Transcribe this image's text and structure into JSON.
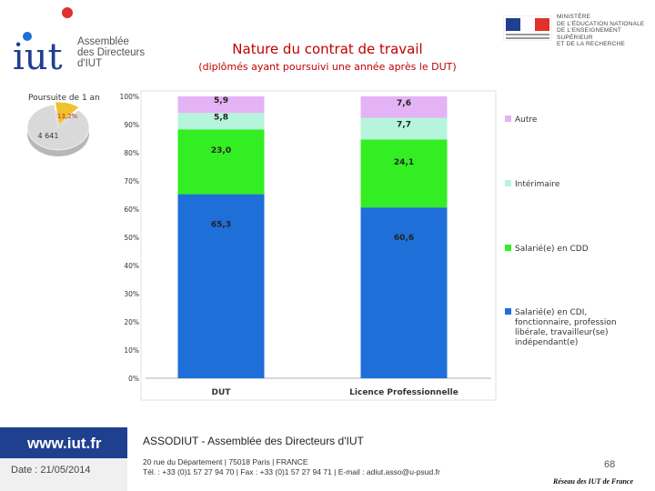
{
  "header": {
    "logo_text": "iut",
    "assembly_lines": [
      "Assemblée",
      "des Directeurs",
      "d'IUT"
    ],
    "title": "Nature du contrat de travail",
    "subtitle": "(diplômés ayant poursuivi une année après le DUT)",
    "ministry_lines": [
      "MINISTÈRE",
      "DE L'ÉDUCATION NATIONALE",
      "DE L'ENSEIGNEMENT SUPÉRIEUR",
      "ET DE LA RECHERCHE"
    ],
    "flag_caption": "Liberté • Égalité • Fraternité\nRÉPUBLIQUE FRANÇAISE"
  },
  "colors": {
    "cdi": "#1f6fd9",
    "cdd": "#33ee22",
    "interim": "#b6f5dc",
    "autre": "#e4b3f5",
    "pie_main": "#d9d9d9",
    "pie_slice": "#f2c12e",
    "title_red": "#c00000",
    "footer_blue": "#1f3f8f"
  },
  "chart_data": [
    {
      "type": "bar",
      "stacked": true,
      "categories": [
        "DUT",
        "Licence Professionnelle"
      ],
      "series": [
        {
          "name": "Salarié(e) en CDI, fonctionnaire, profession libérale, travailleur(se) indépendant(e)",
          "values": [
            65.3,
            60.6
          ],
          "labels": [
            "65,3",
            "60,6"
          ],
          "color": "#1f6fd9"
        },
        {
          "name": "Salarié(e) en CDD",
          "values": [
            23.0,
            24.1
          ],
          "labels": [
            "23,0",
            "24,1"
          ],
          "color": "#33ee22"
        },
        {
          "name": "Intérimaire",
          "values": [
            5.8,
            7.7
          ],
          "labels": [
            "5,8",
            "7,7"
          ],
          "color": "#b6f5dc"
        },
        {
          "name": "Autre",
          "values": [
            5.9,
            7.6
          ],
          "labels": [
            "5,9",
            "7,6"
          ],
          "color": "#e4b3f5"
        }
      ],
      "legend_lines": [
        [
          "Autre"
        ],
        [
          "Intérimaire"
        ],
        [
          "Salarié(e) en CDD"
        ],
        [
          "Salarié(e) en CDI,",
          "fonctionnaire, profession",
          "libérale, travailleur(se)",
          "indépendant(e)"
        ]
      ],
      "yticks": [
        "0%",
        "10%",
        "20%",
        "30%",
        "40%",
        "50%",
        "60%",
        "70%",
        "80%",
        "90%",
        "100%"
      ],
      "ylim": [
        0,
        100
      ],
      "legend": "right"
    },
    {
      "type": "pie",
      "title": "Poursuite de 1 an",
      "slices": [
        {
          "label": "4 641",
          "value": 86.8
        },
        {
          "label": "13,2%",
          "value": 13.2
        }
      ]
    }
  ],
  "footer": {
    "website": "www.iut.fr",
    "date": "Date : 21/05/2014",
    "org": "ASSODIUT - Assemblée des Directeurs d'IUT",
    "address": "20 rue du Département | 75018 Paris | FRANCE",
    "contact": "Tél. : +33 (0)1 57 27 94 70 | Fax : +33 (0)1 57 27 94 71 | E-mail : adiut.asso@u-psud.fr",
    "page": "68",
    "network": "Réseau des IUT de France"
  }
}
